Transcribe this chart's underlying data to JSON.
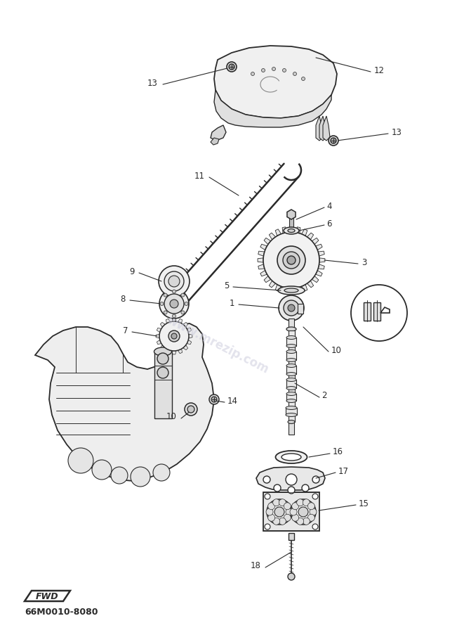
{
  "title": "66M0010-8080",
  "bg_color": "#ffffff",
  "line_color": "#2a2a2a",
  "watermark": "www.mrezip.com",
  "watermark_color": "#ccccdd",
  "fwd_text": "FWD",
  "figsize": [
    6.61,
    9.13
  ],
  "dpi": 100
}
